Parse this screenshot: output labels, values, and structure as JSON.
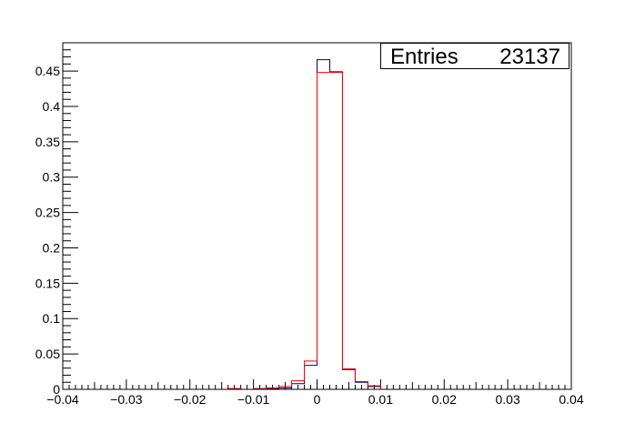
{
  "chart_data": {
    "type": "histogram",
    "title": "",
    "xlabel": "",
    "ylabel": "",
    "xlim": [
      -0.04,
      0.04
    ],
    "ylim": [
      0,
      0.49
    ],
    "grid": false,
    "x_ticks": [
      "−0.04",
      "−0.03",
      "−0.02",
      "−0.01",
      "0",
      "0.01",
      "0.02",
      "0.03",
      "0.04"
    ],
    "x_tick_values": [
      -0.04,
      -0.03,
      -0.02,
      -0.01,
      0,
      0.01,
      0.02,
      0.03,
      0.04
    ],
    "y_ticks": [
      "0",
      "0.05",
      "0.1",
      "0.15",
      "0.2",
      "0.25",
      "0.3",
      "0.35",
      "0.4",
      "0.45"
    ],
    "y_tick_values": [
      0,
      0.05,
      0.1,
      0.15,
      0.2,
      0.25,
      0.3,
      0.35,
      0.4,
      0.45
    ],
    "bin_edges": [
      -0.04,
      -0.038,
      -0.036,
      -0.034,
      -0.032,
      -0.03,
      -0.028,
      -0.026,
      -0.024,
      -0.022,
      -0.02,
      -0.018,
      -0.016,
      -0.014,
      -0.012,
      -0.01,
      -0.008,
      -0.006,
      -0.004,
      -0.002,
      0,
      0.002,
      0.004,
      0.006,
      0.008,
      0.01,
      0.012,
      0.014,
      0.016,
      0.018,
      0.02,
      0.022,
      0.024,
      0.026,
      0.028,
      0.03,
      0.032,
      0.034,
      0.036,
      0.038,
      0.04
    ],
    "series": [
      {
        "color": "#000080",
        "values": [
          0,
          0,
          0,
          0,
          0,
          0,
          0,
          0,
          0,
          0,
          0,
          0,
          0,
          0.001,
          0,
          0.001,
          0.001,
          0.002,
          0.008,
          0.034,
          0.466,
          0.449,
          0.028,
          0.01,
          0.004,
          0,
          0,
          0,
          0,
          0,
          0,
          0,
          0,
          0,
          0,
          0,
          0,
          0,
          0,
          0
        ]
      },
      {
        "color": "#ff0000",
        "values": [
          0,
          0,
          0,
          0,
          0,
          0,
          0,
          0,
          0,
          0,
          0,
          0,
          0,
          0.001,
          0,
          0.001,
          0.002,
          0.004,
          0.012,
          0.04,
          0.448,
          0.448,
          0.029,
          0.011,
          0.005,
          0,
          0,
          0,
          0,
          0,
          0,
          0,
          0,
          0,
          0,
          0,
          0,
          0,
          0,
          0
        ]
      }
    ],
    "stats_box": {
      "label": "Entries",
      "value": "23137"
    }
  }
}
